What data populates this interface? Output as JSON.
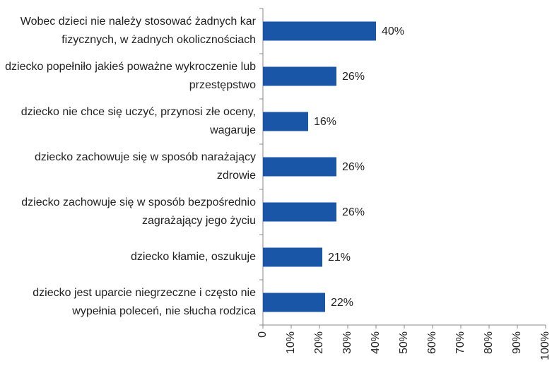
{
  "chart_data": {
    "type": "bar",
    "orientation": "horizontal",
    "color": "#1a56a8",
    "categories": [
      "Wobec dzieci nie należy stosować żadnych kar fizycznych, w żadnych okolicznościach",
      "dziecko popełniło jakieś poważne wykroczenie lub przestępstwo",
      "dziecko nie chce się uczyć, przynosi złe oceny, wagaruje",
      "dziecko zachowuje się w sposób narażający zdrowie",
      "dziecko zachowuje się w sposób bezpośrednio zagrażający jego życiu",
      "dziecko kłamie, oszukuje",
      "dziecko jest uparcie niegrzeczne i często nie wypełnia poleceń, nie słucha rodzica"
    ],
    "values": [
      40,
      26,
      16,
      26,
      26,
      21,
      22
    ],
    "value_labels": [
      "40%",
      "26%",
      "16%",
      "26%",
      "26%",
      "21%",
      "22%"
    ],
    "xlim": [
      0,
      100
    ],
    "xticks": [
      0,
      {
        "value": 10,
        "label": "10%"
      },
      {
        "value": 20,
        "label": "20%"
      },
      {
        "value": 30,
        "label": "30%"
      },
      {
        "value": 40,
        "label": "40%"
      },
      {
        "value": 50,
        "label": "50%"
      },
      {
        "value": 60,
        "label": "60%"
      },
      {
        "value": 70,
        "label": "70%"
      },
      {
        "value": 80,
        "label": "80%"
      },
      {
        "value": 90,
        "label": "90%"
      },
      {
        "value": 100,
        "label": "100%"
      }
    ]
  }
}
